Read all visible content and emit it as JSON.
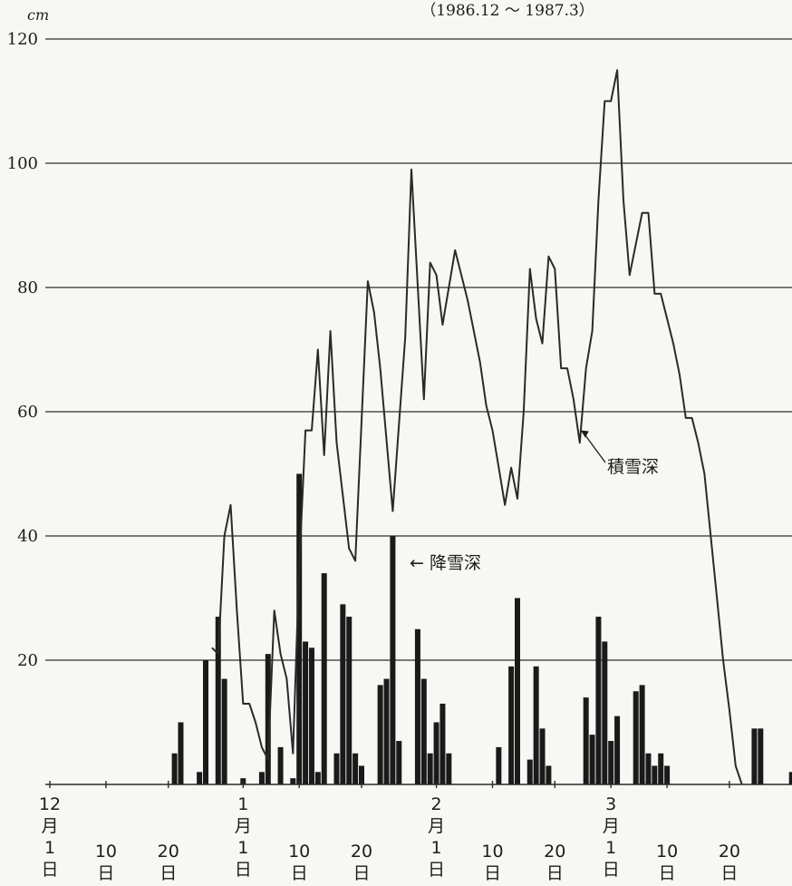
{
  "chart_data": {
    "type": "bar+line",
    "title": "（1986.12 ～ 1987.3）",
    "y_unit": "cm",
    "ylim": [
      0,
      120
    ],
    "yticks": [
      20,
      40,
      60,
      80,
      100,
      120
    ],
    "grid": true,
    "x_start": "1986-12-01",
    "x_end": "1987-03-31",
    "xticks": [
      {
        "date": "1986-12-01",
        "lines": [
          "12",
          "月",
          "1",
          "日"
        ]
      },
      {
        "date": "1986-12-10",
        "lines": [
          "10",
          "日"
        ]
      },
      {
        "date": "1986-12-20",
        "lines": [
          "20",
          "日"
        ]
      },
      {
        "date": "1987-01-01",
        "lines": [
          "1",
          "月",
          "1",
          "日"
        ]
      },
      {
        "date": "1987-01-10",
        "lines": [
          "10",
          "日"
        ]
      },
      {
        "date": "1987-01-20",
        "lines": [
          "20",
          "日"
        ]
      },
      {
        "date": "1987-02-01",
        "lines": [
          "2",
          "月",
          "1",
          "日"
        ]
      },
      {
        "date": "1987-02-10",
        "lines": [
          "10",
          "日"
        ]
      },
      {
        "date": "1987-02-20",
        "lines": [
          "20",
          "日"
        ]
      },
      {
        "date": "1987-03-01",
        "lines": [
          "3",
          "月",
          "1",
          "日"
        ]
      },
      {
        "date": "1987-03-10",
        "lines": [
          "10",
          "日"
        ]
      },
      {
        "date": "1987-03-20",
        "lines": [
          "20",
          "日"
        ]
      }
    ],
    "series": [
      {
        "name": "降雪深",
        "kind": "bar",
        "color": "#1a1a1a",
        "points": [
          [
            "1986-12-21",
            5
          ],
          [
            "1986-12-22",
            10
          ],
          [
            "1986-12-25",
            2
          ],
          [
            "1986-12-26",
            20
          ],
          [
            "1986-12-28",
            27
          ],
          [
            "1986-12-29",
            17
          ],
          [
            "1987-01-01",
            1
          ],
          [
            "1987-01-04",
            2
          ],
          [
            "1987-01-05",
            21
          ],
          [
            "1987-01-07",
            6
          ],
          [
            "1987-01-09",
            1
          ],
          [
            "1987-01-10",
            50
          ],
          [
            "1987-01-11",
            23
          ],
          [
            "1987-01-12",
            22
          ],
          [
            "1987-01-13",
            2
          ],
          [
            "1987-01-14",
            34
          ],
          [
            "1987-01-16",
            5
          ],
          [
            "1987-01-17",
            29
          ],
          [
            "1987-01-18",
            27
          ],
          [
            "1987-01-19",
            5
          ],
          [
            "1987-01-20",
            3
          ],
          [
            "1987-01-23",
            16
          ],
          [
            "1987-01-24",
            17
          ],
          [
            "1987-01-25",
            40
          ],
          [
            "1987-01-26",
            7
          ],
          [
            "1987-01-29",
            25
          ],
          [
            "1987-01-30",
            17
          ],
          [
            "1987-01-31",
            5
          ],
          [
            "1987-02-01",
            10
          ],
          [
            "1987-02-02",
            13
          ],
          [
            "1987-02-03",
            5
          ],
          [
            "1987-02-11",
            6
          ],
          [
            "1987-02-13",
            19
          ],
          [
            "1987-02-14",
            30
          ],
          [
            "1987-02-16",
            4
          ],
          [
            "1987-02-17",
            19
          ],
          [
            "1987-02-18",
            9
          ],
          [
            "1987-02-19",
            3
          ],
          [
            "1987-02-25",
            14
          ],
          [
            "1987-02-26",
            8
          ],
          [
            "1987-02-27",
            27
          ],
          [
            "1987-02-28",
            23
          ],
          [
            "1987-03-01",
            7
          ],
          [
            "1987-03-02",
            11
          ],
          [
            "1987-03-05",
            15
          ],
          [
            "1987-03-06",
            16
          ],
          [
            "1987-03-07",
            5
          ],
          [
            "1987-03-08",
            3
          ],
          [
            "1987-03-09",
            5
          ],
          [
            "1987-03-10",
            3
          ],
          [
            "1987-03-24",
            9
          ],
          [
            "1987-03-25",
            9
          ],
          [
            "1987-03-30",
            2
          ]
        ]
      },
      {
        "name": "積雪深",
        "kind": "line",
        "color": "#2a2a2a",
        "points": [
          [
            "1986-12-27",
            22
          ],
          [
            "1986-12-28",
            21
          ],
          [
            "1986-12-29",
            40
          ],
          [
            "1986-12-30",
            45
          ],
          [
            "1986-12-31",
            28
          ],
          [
            "1987-01-01",
            13
          ],
          [
            "1987-01-02",
            13
          ],
          [
            "1987-01-03",
            10
          ],
          [
            "1987-01-04",
            6
          ],
          [
            "1987-01-05",
            4
          ],
          [
            "1987-01-06",
            28
          ],
          [
            "1987-01-07",
            21
          ],
          [
            "1987-01-08",
            17
          ],
          [
            "1987-01-09",
            5
          ],
          [
            "1987-01-10",
            35
          ],
          [
            "1987-01-11",
            57
          ],
          [
            "1987-01-12",
            57
          ],
          [
            "1987-01-13",
            70
          ],
          [
            "1987-01-14",
            53
          ],
          [
            "1987-01-15",
            73
          ],
          [
            "1987-01-16",
            55
          ],
          [
            "1987-01-18",
            38
          ],
          [
            "1987-01-19",
            36
          ],
          [
            "1987-01-21",
            81
          ],
          [
            "1987-01-22",
            76
          ],
          [
            "1987-01-23",
            67
          ],
          [
            "1987-01-25",
            44
          ],
          [
            "1987-01-27",
            72
          ],
          [
            "1987-01-28",
            99
          ],
          [
            "1987-01-30",
            62
          ],
          [
            "1987-01-31",
            84
          ],
          [
            "1987-02-01",
            82
          ],
          [
            "1987-02-02",
            74
          ],
          [
            "1987-02-04",
            86
          ],
          [
            "1987-02-06",
            78
          ],
          [
            "1987-02-08",
            68
          ],
          [
            "1987-02-09",
            61
          ],
          [
            "1987-02-10",
            57
          ],
          [
            "1987-02-11",
            51
          ],
          [
            "1987-02-12",
            45
          ],
          [
            "1987-02-13",
            51
          ],
          [
            "1987-02-14",
            46
          ],
          [
            "1987-02-15",
            60
          ],
          [
            "1987-02-16",
            83
          ],
          [
            "1987-02-17",
            75
          ],
          [
            "1987-02-18",
            71
          ],
          [
            "1987-02-19",
            85
          ],
          [
            "1987-02-20",
            83
          ],
          [
            "1987-02-21",
            67
          ],
          [
            "1987-02-22",
            67
          ],
          [
            "1987-02-23",
            62
          ],
          [
            "1987-02-24",
            55
          ],
          [
            "1987-02-25",
            67
          ],
          [
            "1987-02-26",
            73
          ],
          [
            "1987-02-27",
            94
          ],
          [
            "1987-02-28",
            110
          ],
          [
            "1987-03-01",
            110
          ],
          [
            "1987-03-02",
            115
          ],
          [
            "1987-03-03",
            94
          ],
          [
            "1987-03-04",
            82
          ],
          [
            "1987-03-05",
            87
          ],
          [
            "1987-03-06",
            92
          ],
          [
            "1987-03-07",
            92
          ],
          [
            "1987-03-08",
            79
          ],
          [
            "1987-03-09",
            79
          ],
          [
            "1987-03-10",
            75
          ],
          [
            "1987-03-11",
            71
          ],
          [
            "1987-03-12",
            66
          ],
          [
            "1987-03-13",
            59
          ],
          [
            "1987-03-14",
            59
          ],
          [
            "1987-03-15",
            55
          ],
          [
            "1987-03-16",
            50
          ],
          [
            "1987-03-17",
            40
          ],
          [
            "1987-03-18",
            30
          ],
          [
            "1987-03-19",
            20
          ],
          [
            "1987-03-20",
            12
          ],
          [
            "1987-03-21",
            3
          ],
          [
            "1987-03-22",
            0
          ]
        ]
      }
    ],
    "annotations": [
      {
        "text": "積雪深",
        "arrow_to": [
          "1987-02-24",
          57
        ]
      },
      {
        "text": "← 降雪深",
        "arrow_to": [
          "1987-01-25",
          37
        ]
      }
    ]
  }
}
